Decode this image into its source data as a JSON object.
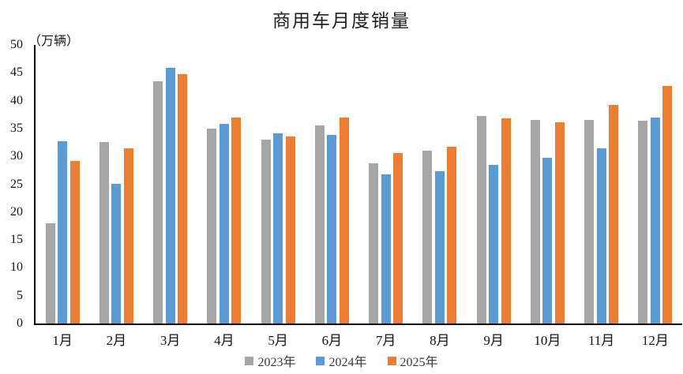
{
  "chart_data": {
    "type": "bar",
    "title": "商用车月度销量",
    "ylabel": "（万辆）",
    "categories": [
      "1月",
      "2月",
      "3月",
      "4月",
      "5月",
      "6月",
      "7月",
      "8月",
      "9月",
      "10月",
      "11月",
      "12月"
    ],
    "series": [
      {
        "name": "2023年",
        "color": "#a6a6a6",
        "values": [
          18.0,
          32.6,
          43.5,
          35.0,
          33.0,
          35.6,
          28.8,
          31.0,
          37.2,
          36.5,
          36.6,
          36.4
        ]
      },
      {
        "name": "2024年",
        "color": "#5b9bd5",
        "values": [
          32.7,
          25.1,
          45.9,
          35.8,
          34.2,
          33.8,
          26.8,
          27.3,
          28.4,
          29.8,
          31.5,
          37.0
        ]
      },
      {
        "name": "2025年",
        "color": "#ed7d31",
        "values": [
          29.2,
          31.4,
          44.7,
          37.0,
          33.6,
          37.0,
          30.6,
          31.7,
          36.8,
          36.1,
          39.2,
          42.6
        ]
      }
    ],
    "ylim": [
      0,
      50
    ],
    "ytick_step": 5,
    "grid": false,
    "legend_position": "bottom",
    "axis_color": "#000000",
    "text_color": "#141414"
  }
}
